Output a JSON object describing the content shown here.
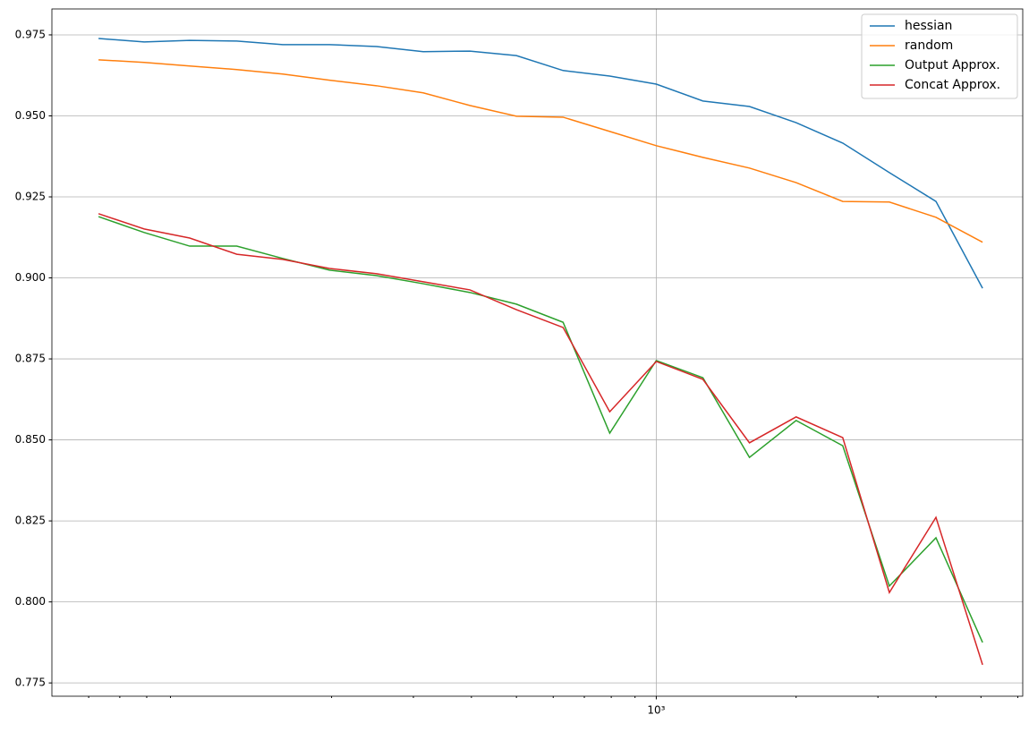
{
  "chart_data": {
    "type": "line",
    "x": [
      63,
      79,
      99,
      125,
      157,
      198,
      250,
      315,
      397,
      500,
      630,
      794,
      1000,
      1260,
      1587,
      2000,
      2520,
      3175,
      4000,
      5040
    ],
    "series": [
      {
        "name": "hessian",
        "color": "#1f77b4",
        "values": [
          0.9739,
          0.9728,
          0.9733,
          0.9731,
          0.972,
          0.972,
          0.9714,
          0.9698,
          0.97,
          0.9686,
          0.964,
          0.9623,
          0.9598,
          0.9546,
          0.9529,
          0.9479,
          0.9416,
          0.9325,
          0.9236,
          0.8968
        ]
      },
      {
        "name": "random",
        "color": "#ff7f0e",
        "values": [
          0.9673,
          0.9665,
          0.9654,
          0.9643,
          0.9629,
          0.961,
          0.9593,
          0.9571,
          0.9532,
          0.9499,
          0.9496,
          0.9452,
          0.9408,
          0.9372,
          0.9339,
          0.9294,
          0.9236,
          0.9234,
          0.9187,
          0.911
        ]
      },
      {
        "name": "Output Approx.",
        "color": "#2ca02c",
        "values": [
          0.9189,
          0.914,
          0.9098,
          0.9098,
          0.906,
          0.9024,
          0.9007,
          0.8982,
          0.8955,
          0.8919,
          0.8863,
          0.8521,
          0.8745,
          0.8692,
          0.8446,
          0.856,
          0.8482,
          0.8049,
          0.8198,
          0.7875
        ]
      },
      {
        "name": "Concat Approx.",
        "color": "#d62728",
        "values": [
          0.9198,
          0.9151,
          0.9123,
          0.9073,
          0.9057,
          0.9029,
          0.9013,
          0.8988,
          0.8963,
          0.8902,
          0.8847,
          0.8587,
          0.8742,
          0.8687,
          0.8491,
          0.8571,
          0.8507,
          0.8029,
          0.8261,
          0.7806
        ]
      }
    ],
    "xscale": "log",
    "xlim": [
      50,
      6150
    ],
    "xticks": [
      {
        "value": 1000,
        "label": "10³"
      }
    ],
    "xminorticks": [
      60,
      70,
      80,
      90,
      200,
      300,
      400,
      500,
      600,
      700,
      800,
      900,
      2000,
      3000,
      4000,
      5000,
      6000
    ],
    "ylim": [
      0.7709,
      0.983
    ],
    "yticks": [
      0.775,
      {
        "value": 0.8,
        "label": "0.800"
      },
      0.825,
      {
        "value": 0.85,
        "label": "0.850"
      },
      0.875,
      {
        "value": 0.9,
        "label": "0.900"
      },
      0.925,
      {
        "value": 0.95,
        "label": "0.950"
      },
      0.975
    ],
    "grid": true,
    "legend": "upper right"
  }
}
